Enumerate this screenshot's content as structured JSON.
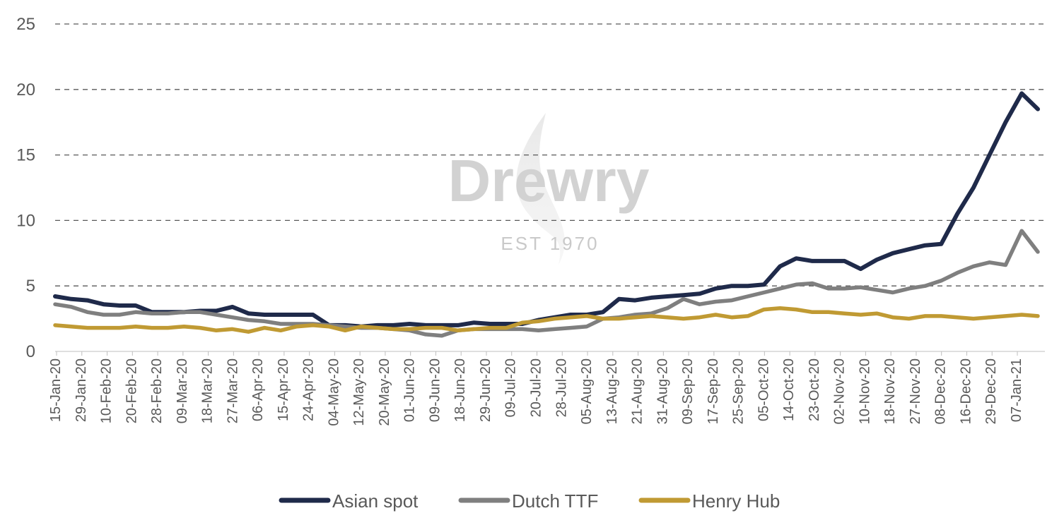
{
  "watermark": {
    "brand": "Drewry",
    "tagline": "EST 1970"
  },
  "chart_data": {
    "type": "line",
    "title": "",
    "xlabel": "",
    "ylabel": "",
    "ylim": [
      0,
      25
    ],
    "yticks": [
      0,
      5,
      10,
      15,
      20,
      25
    ],
    "grid": "horizontal-dashed",
    "legend_position": "bottom",
    "x_tick_labels": [
      "15-Jan-20",
      "29-Jan-20",
      "10-Feb-20",
      "20-Feb-20",
      "28-Feb-20",
      "09-Mar-20",
      "18-Mar-20",
      "27-Mar-20",
      "06-Apr-20",
      "15-Apr-20",
      "24-Apr-20",
      "04-May-20",
      "12-May-20",
      "20-May-20",
      "01-Jun-20",
      "09-Jun-20",
      "18-Jun-20",
      "29-Jun-20",
      "09-Jul-20",
      "20-Jul-20",
      "28-Jul-20",
      "05-Aug-20",
      "13-Aug-20",
      "21-Aug-20",
      "31-Aug-20",
      "09-Sep-20",
      "17-Sep-20",
      "25-Sep-20",
      "05-Oct-20",
      "14-Oct-20",
      "23-Oct-20",
      "02-Nov-20",
      "10-Nov-20",
      "18-Nov-20",
      "27-Nov-20",
      "08-Dec-20",
      "16-Dec-20",
      "29-Dec-20",
      "07-Jan-21"
    ],
    "series": [
      {
        "name": "Asian spot",
        "color": "#1f2a4a",
        "values": [
          4.2,
          4.0,
          3.9,
          3.6,
          3.5,
          3.5,
          3.0,
          3.0,
          3.0,
          3.1,
          3.1,
          3.4,
          2.9,
          2.8,
          2.8,
          2.8,
          2.8,
          2.0,
          2.0,
          1.9,
          2.0,
          2.0,
          2.1,
          2.0,
          2.0,
          2.0,
          2.2,
          2.1,
          2.1,
          2.1,
          2.4,
          2.6,
          2.8,
          2.8,
          3.0,
          4.0,
          3.9,
          4.1,
          4.2,
          4.3,
          4.4,
          4.8,
          5.0,
          5.0,
          5.1,
          6.5,
          7.1,
          6.9,
          6.9,
          6.9,
          6.3,
          7.0,
          7.5,
          7.8,
          8.1,
          8.2,
          10.5,
          12.5,
          15.0,
          17.5,
          19.7,
          18.5
        ]
      },
      {
        "name": "Dutch TTF",
        "color": "#7f7f7f",
        "values": [
          3.6,
          3.4,
          3.0,
          2.8,
          2.8,
          3.0,
          2.9,
          2.9,
          3.0,
          3.0,
          2.8,
          2.6,
          2.4,
          2.3,
          2.1,
          2.1,
          2.1,
          2.0,
          1.9,
          1.8,
          1.8,
          1.7,
          1.6,
          1.3,
          1.2,
          1.6,
          1.7,
          1.7,
          1.7,
          1.7,
          1.6,
          1.7,
          1.8,
          1.9,
          2.5,
          2.6,
          2.8,
          2.9,
          3.3,
          4.0,
          3.6,
          3.8,
          3.9,
          4.2,
          4.5,
          4.8,
          5.1,
          5.2,
          4.8,
          4.8,
          4.9,
          4.7,
          4.5,
          4.8,
          5.0,
          5.4,
          6.0,
          6.5,
          6.8,
          6.6,
          9.2,
          7.6
        ]
      },
      {
        "name": "Henry Hub",
        "color": "#c09a33",
        "values": [
          2.0,
          1.9,
          1.8,
          1.8,
          1.8,
          1.9,
          1.8,
          1.8,
          1.9,
          1.8,
          1.6,
          1.7,
          1.5,
          1.8,
          1.6,
          1.9,
          2.0,
          1.9,
          1.6,
          1.9,
          1.8,
          1.7,
          1.7,
          1.8,
          1.8,
          1.6,
          1.7,
          1.8,
          1.8,
          2.2,
          2.3,
          2.5,
          2.6,
          2.7,
          2.5,
          2.5,
          2.6,
          2.7,
          2.6,
          2.5,
          2.6,
          2.8,
          2.6,
          2.7,
          3.2,
          3.3,
          3.2,
          3.0,
          3.0,
          2.9,
          2.8,
          2.9,
          2.6,
          2.5,
          2.7,
          2.7,
          2.6,
          2.5,
          2.6,
          2.7,
          2.8,
          2.7
        ]
      }
    ]
  }
}
